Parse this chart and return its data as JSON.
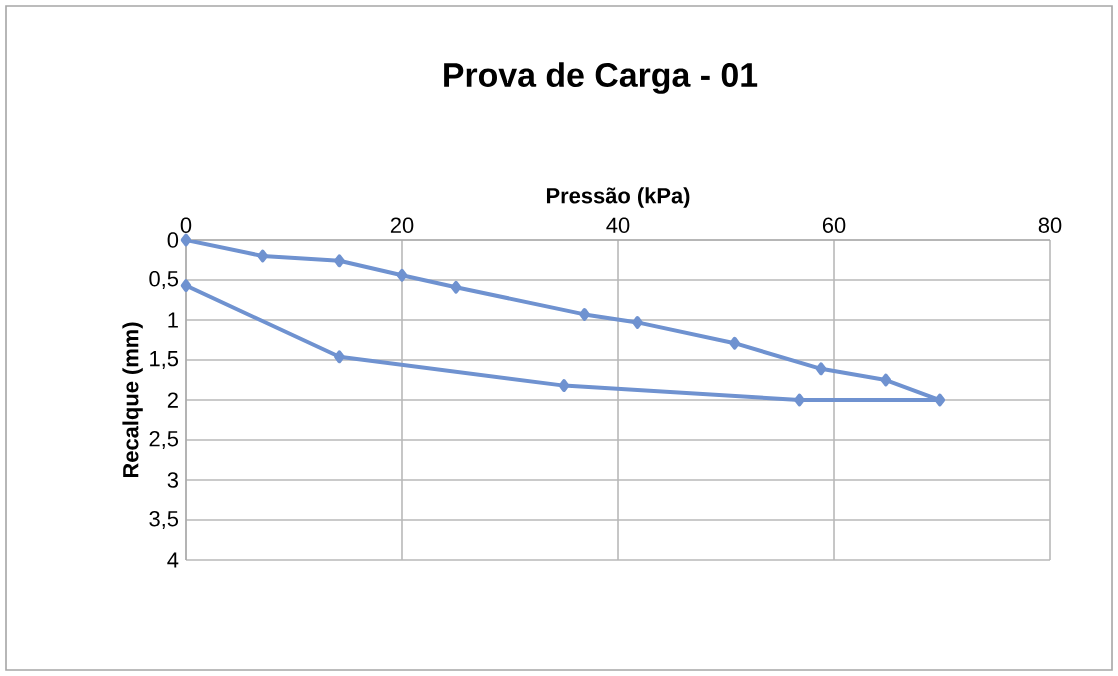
{
  "chart_data": {
    "type": "line",
    "title": "Prova de Carga - 01",
    "xlabel": "Pressão (kPa)",
    "ylabel": "Recalque (mm)",
    "x": [
      0,
      7.1,
      14.2,
      20,
      25,
      36.9,
      41.8,
      50.8,
      58.8,
      64.8,
      69.8,
      56.8,
      35,
      14.2,
      0
    ],
    "series": [
      {
        "color": "#6f92d0",
        "values": [
          0,
          0.2,
          0.26,
          0.44,
          0.59,
          0.93,
          1.03,
          1.29,
          1.61,
          1.75,
          2.0,
          2.0,
          1.82,
          1.46,
          0.57
        ]
      }
    ],
    "xlim": [
      0,
      80
    ],
    "xticks": [
      0,
      20,
      40,
      60,
      80
    ],
    "ylim": [
      4,
      0
    ],
    "yticks": [
      0,
      {
        "value": 0.5,
        "label": "0,5"
      },
      1,
      {
        "value": 1.5,
        "label": "1,5"
      },
      2,
      {
        "value": 2.5,
        "label": "2,5"
      },
      3,
      {
        "value": 3.5,
        "label": "3,5"
      },
      4
    ],
    "grid": true,
    "marker": "diamond",
    "line_style": "solid"
  }
}
